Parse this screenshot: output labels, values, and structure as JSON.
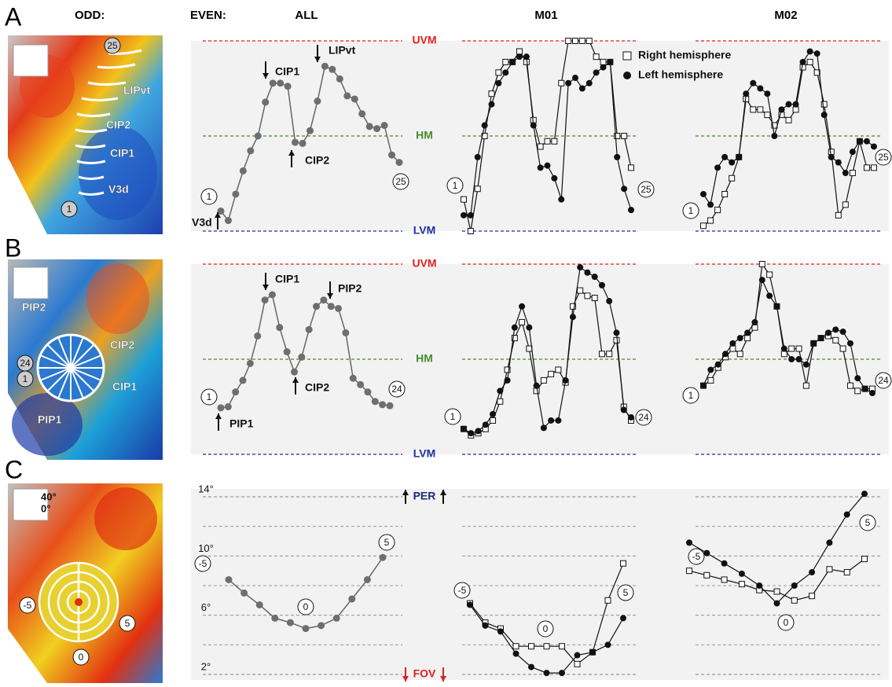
{
  "row_labels": [
    "A",
    "B",
    "C"
  ],
  "column_labels": {
    "odd": "ODD:",
    "even": "EVEN:"
  },
  "images": [
    {
      "labels": [
        "25",
        "LIPvt",
        "CIP2",
        "CIP1",
        "V3d",
        "1"
      ]
    },
    {
      "labels": [
        "PIP2",
        "CIP2",
        "24",
        "1",
        "CIP1",
        "PIP1"
      ]
    },
    {
      "labels": [
        "40°",
        "0°",
        "-5",
        "0",
        "5"
      ]
    }
  ],
  "chart_data": [
    {
      "type": "line",
      "title": "ALL",
      "end_labels": [
        "1",
        "25"
      ],
      "annotations": [
        "CIP1",
        "LIPvt",
        "CIP2",
        "V3d"
      ],
      "ylim": [
        -90,
        90
      ],
      "yticks": [
        {
          "value": -90,
          "label": "LVM"
        },
        {
          "value": 0,
          "label": "HM"
        },
        {
          "value": 90,
          "label": "UVM"
        }
      ],
      "ytick_colors": [
        "#1f2fa8",
        "#4a8a2a",
        "#e02020"
      ],
      "series": [
        {
          "color": "#666666",
          "marker": "dot",
          "values": [
            -71,
            -80,
            -55,
            -33,
            -14,
            0,
            32,
            50,
            50,
            47,
            -6,
            -7,
            5,
            33,
            66,
            63,
            54,
            38,
            35,
            21,
            9,
            7,
            10,
            -18,
            -25
          ]
        }
      ]
    },
    {
      "type": "line",
      "title": "M01",
      "end_labels": [
        "1",
        "25"
      ],
      "ylim": [
        -90,
        90
      ],
      "legend": "top-right",
      "series": [
        {
          "name": "Right hemisphere",
          "color": "#111111",
          "marker": "square",
          "values": [
            -60,
            -90,
            -50,
            0,
            40,
            60,
            70,
            70,
            80,
            70,
            15,
            -10,
            -5,
            -5,
            50,
            90,
            90,
            90,
            90,
            75,
            70,
            70,
            0,
            0,
            -30
          ]
        },
        {
          "name": "Left hemisphere",
          "color": "#111111",
          "marker": "circle",
          "values": [
            -75,
            -75,
            -20,
            10,
            30,
            50,
            60,
            70,
            75,
            75,
            10,
            -30,
            -28,
            -40,
            -60,
            50,
            55,
            45,
            50,
            60,
            65,
            70,
            -20,
            -50,
            -70
          ]
        }
      ]
    },
    {
      "type": "line",
      "title": "M02",
      "end_labels": [
        "1",
        "25"
      ],
      "ylim": [
        -90,
        90
      ],
      "series": [
        {
          "color": "#111111",
          "marker": "square",
          "values": [
            -85,
            -80,
            -70,
            -55,
            -40,
            -20,
            35,
            25,
            25,
            20,
            10,
            20,
            15,
            25,
            65,
            70,
            60,
            30,
            -15,
            -75,
            -65,
            -35,
            -5,
            -30,
            -30
          ]
        },
        {
          "color": "#111111",
          "marker": "circle",
          "values": [
            -55,
            -65,
            -30,
            -20,
            -25,
            -20,
            40,
            50,
            45,
            40,
            0,
            25,
            30,
            30,
            70,
            80,
            78,
            20,
            -20,
            -25,
            -35,
            -15,
            -5,
            -5,
            -10
          ]
        }
      ]
    },
    {
      "type": "line",
      "end_labels": [
        "1",
        "24"
      ],
      "annotations": [
        "CIP1",
        "PIP2",
        "CIP2",
        "PIP1"
      ],
      "ylim": [
        -90,
        90
      ],
      "yticks": [
        {
          "value": -90,
          "label": "LVM"
        },
        {
          "value": 0,
          "label": "HM"
        },
        {
          "value": 90,
          "label": "UVM"
        }
      ],
      "ytick_colors": [
        "#1f2fa8",
        "#4a8a2a",
        "#e02020"
      ],
      "series": [
        {
          "color": "#666666",
          "marker": "dot",
          "values": [
            -46,
            -45,
            -31,
            -20,
            -4,
            22,
            56,
            61,
            30,
            7,
            -12,
            2,
            28,
            50,
            56,
            50,
            48,
            25,
            -18,
            -24,
            -31,
            -40,
            -43,
            -44
          ]
        }
      ]
    },
    {
      "type": "line",
      "end_labels": [
        "1",
        "24"
      ],
      "ylim": [
        -90,
        90
      ],
      "series": [
        {
          "color": "#111111",
          "marker": "square",
          "values": [
            -66,
            -72,
            -70,
            -66,
            -58,
            -40,
            -10,
            20,
            35,
            10,
            -30,
            -20,
            -14,
            -10,
            -22,
            50,
            65,
            60,
            58,
            5,
            5,
            18,
            -45,
            -58
          ]
        },
        {
          "color": "#111111",
          "marker": "circle",
          "values": [
            -66,
            -70,
            -68,
            -62,
            -52,
            -30,
            -20,
            30,
            50,
            30,
            -25,
            -65,
            -58,
            -58,
            -20,
            40,
            87,
            82,
            78,
            70,
            55,
            25,
            -48,
            -55
          ]
        }
      ]
    },
    {
      "type": "line",
      "end_labels": [
        "1",
        "24"
      ],
      "ylim": [
        -90,
        90
      ],
      "series": [
        {
          "color": "#111111",
          "marker": "square",
          "values": [
            -25,
            -20,
            -8,
            2,
            10,
            5,
            20,
            30,
            90,
            80,
            50,
            5,
            10,
            10,
            -25,
            15,
            20,
            22,
            18,
            10,
            -25,
            -30,
            -28,
            -28
          ]
        },
        {
          "color": "#111111",
          "marker": "circle",
          "values": [
            -25,
            -10,
            -5,
            5,
            15,
            20,
            25,
            35,
            75,
            60,
            50,
            10,
            0,
            0,
            -5,
            15,
            20,
            25,
            28,
            26,
            15,
            -18,
            -28,
            -32
          ]
        }
      ]
    },
    {
      "type": "line",
      "x": [
        -5,
        -4,
        -3,
        -2,
        -1,
        0,
        1,
        2,
        3,
        4,
        5
      ],
      "xlim": [
        -5,
        5
      ],
      "ylim": [
        2,
        14
      ],
      "yticks": [
        {
          "value": 2,
          "label": "2°"
        },
        {
          "value": 6,
          "label": "6°"
        },
        {
          "value": 10,
          "label": "10°"
        },
        {
          "value": 14,
          "label": "14°"
        }
      ],
      "minor_yticks": [
        4,
        8,
        12
      ],
      "ytop_label": "PER",
      "ybottom_label": "FOV",
      "series": [
        {
          "color": "#666666",
          "marker": "dot",
          "values": [
            8.4,
            7.5,
            6.7,
            5.8,
            5.5,
            5.1,
            5.3,
            5.8,
            7.1,
            8.4,
            9.9
          ]
        }
      ]
    },
    {
      "type": "line",
      "x": [
        -5,
        -4,
        -3,
        -2,
        -1,
        0,
        1,
        2,
        3,
        4,
        5
      ],
      "xlim": [
        -5,
        5
      ],
      "ylim": [
        2,
        14
      ],
      "series": [
        {
          "color": "#111111",
          "marker": "square",
          "values": [
            6.8,
            5.5,
            5.1,
            3.9,
            3.9,
            3.9,
            3.9,
            2.7,
            3.5,
            7.0,
            9.5
          ]
        },
        {
          "color": "#111111",
          "marker": "circle",
          "values": [
            6.7,
            5.3,
            4.9,
            3.4,
            2.5,
            2.1,
            2.1,
            3.3,
            3.5,
            4.0,
            5.8
          ]
        }
      ]
    },
    {
      "type": "line",
      "x": [
        -5,
        -4,
        -3,
        -2,
        -1,
        0,
        1,
        2,
        3,
        4,
        5
      ],
      "xlim": [
        -5,
        5
      ],
      "ylim": [
        2,
        14
      ],
      "series": [
        {
          "color": "#111111",
          "marker": "square",
          "values": [
            9.0,
            8.7,
            8.4,
            8.1,
            7.7,
            7.6,
            7.0,
            7.3,
            9.1,
            8.9,
            9.8
          ]
        },
        {
          "color": "#111111",
          "marker": "circle",
          "values": [
            10.9,
            10.2,
            9.5,
            8.8,
            8.0,
            6.8,
            8.0,
            8.9,
            10.9,
            12.8,
            14.2
          ]
        }
      ]
    }
  ]
}
